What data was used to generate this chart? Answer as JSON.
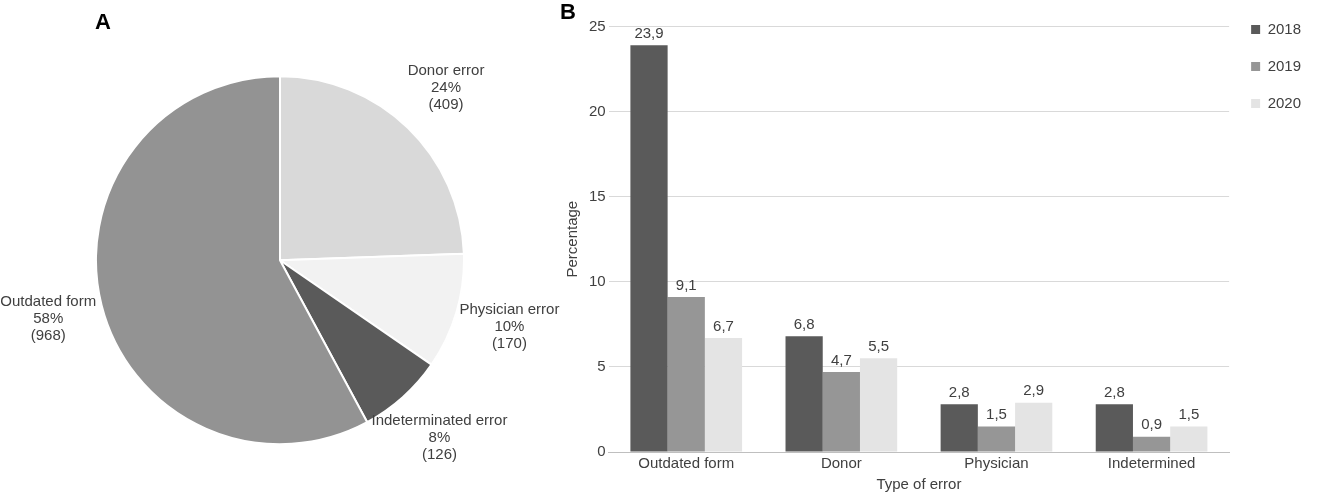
{
  "chart_data": [
    {
      "type": "pie",
      "title": "A",
      "categories": [
        "Donor error",
        "Physician error",
        "Indeterminated error",
        "Outdated form"
      ],
      "values": [
        409,
        170,
        126,
        968
      ],
      "colors": [
        "#d9d9d9",
        "#f2f2f2",
        "#5a5a5a",
        "#939393"
      ],
      "value_labels": [
        "24%\n(409)",
        "10%\n(170)",
        "8%\n(126)",
        "58%\n(968)"
      ],
      "legend": false
    },
    {
      "type": "bar",
      "title": "B",
      "xlabel": "Type of error",
      "ylabel": "Percentage",
      "categories": [
        "Outdated form",
        "Donor",
        "Physician",
        "Indetermined"
      ],
      "series": [
        {
          "name": "2018",
          "color": "#5a5a5a",
          "values": [
            23.9,
            6.8,
            2.8,
            2.8
          ],
          "value_labels": [
            "23,9",
            "6,8",
            "2,8",
            "2,8"
          ]
        },
        {
          "name": "2019",
          "color": "#969696",
          "values": [
            9.1,
            4.7,
            1.5,
            0.9
          ],
          "value_labels": [
            "9,1",
            "4,7",
            "1,5",
            "0,9"
          ]
        },
        {
          "name": "2020",
          "color": "#e4e4e4",
          "values": [
            6.7,
            5.5,
            2.9,
            1.5
          ],
          "value_labels": [
            "6,7",
            "5,5",
            "2,9",
            "1,5"
          ]
        }
      ],
      "ylim": [
        0,
        25
      ],
      "yticks": [
        0,
        5,
        10,
        15,
        20,
        25
      ],
      "grid": "y",
      "legend": "right"
    }
  ]
}
